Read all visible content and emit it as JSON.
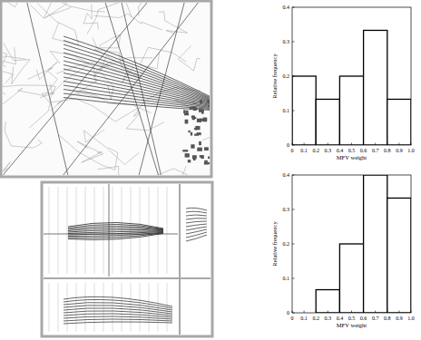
{
  "chart_data": [
    {
      "type": "histogram",
      "x_label": "MFV weight",
      "y_label": "Relative frequency",
      "bins": [
        0,
        0.2,
        0.4,
        0.6,
        0.8,
        1.0
      ],
      "values": [
        0.2,
        0.133,
        0.2,
        0.333,
        0.133
      ],
      "color": "#000000",
      "xlim": [
        0,
        1
      ],
      "ylim": [
        0,
        0.4
      ],
      "xticks": [
        0,
        0.1,
        0.2,
        0.3,
        0.4,
        0.5,
        0.6,
        0.7,
        0.8,
        0.9,
        {
          "value": 1,
          "label": "1.0"
        }
      ],
      "yticks": [
        0,
        0.1,
        0.2,
        0.3,
        0.4
      ],
      "grid": false
    },
    {
      "type": "histogram",
      "x_label": "MFV weight",
      "y_label": "Relative frequency",
      "bins": [
        0,
        0.2,
        0.4,
        0.6,
        0.8,
        1.0
      ],
      "values": [
        0,
        0.067,
        0.2,
        0.4,
        0.333
      ],
      "color": "#000000",
      "xlim": [
        0,
        1
      ],
      "ylim": [
        0,
        0.4
      ],
      "xticks": [
        0,
        0.1,
        0.2,
        0.3,
        0.4,
        0.5,
        0.6,
        0.7,
        0.8,
        0.9,
        {
          "value": 1,
          "label": "1.0"
        }
      ],
      "yticks": [
        0,
        0.1,
        0.2,
        0.3,
        0.4
      ],
      "grid": false
    }
  ]
}
